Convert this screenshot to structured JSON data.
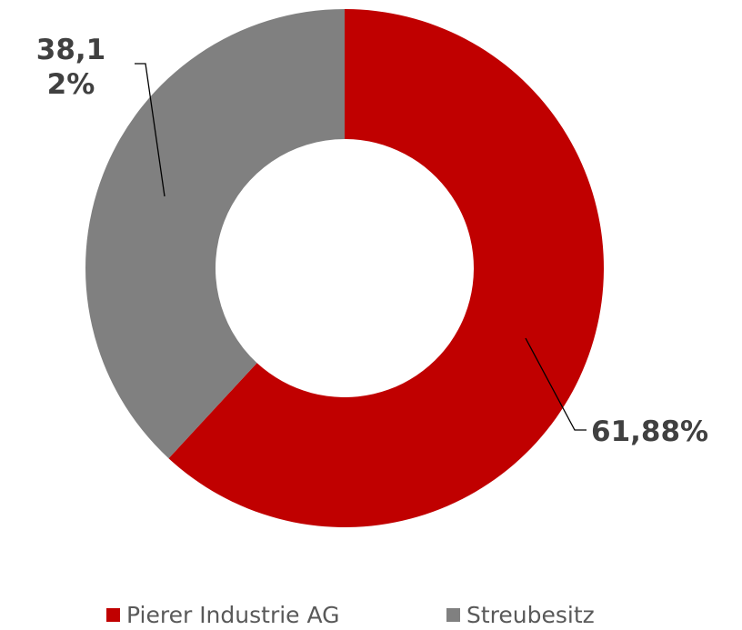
{
  "chart_data": {
    "type": "donut",
    "categories": [
      "Pierer Industrie AG",
      "Streubesitz"
    ],
    "values": [
      61.88,
      38.12
    ],
    "value_labels": [
      "61,88%",
      "38,12%"
    ],
    "colors": [
      "#c00000",
      "#808080"
    ],
    "legend": "bottom"
  }
}
